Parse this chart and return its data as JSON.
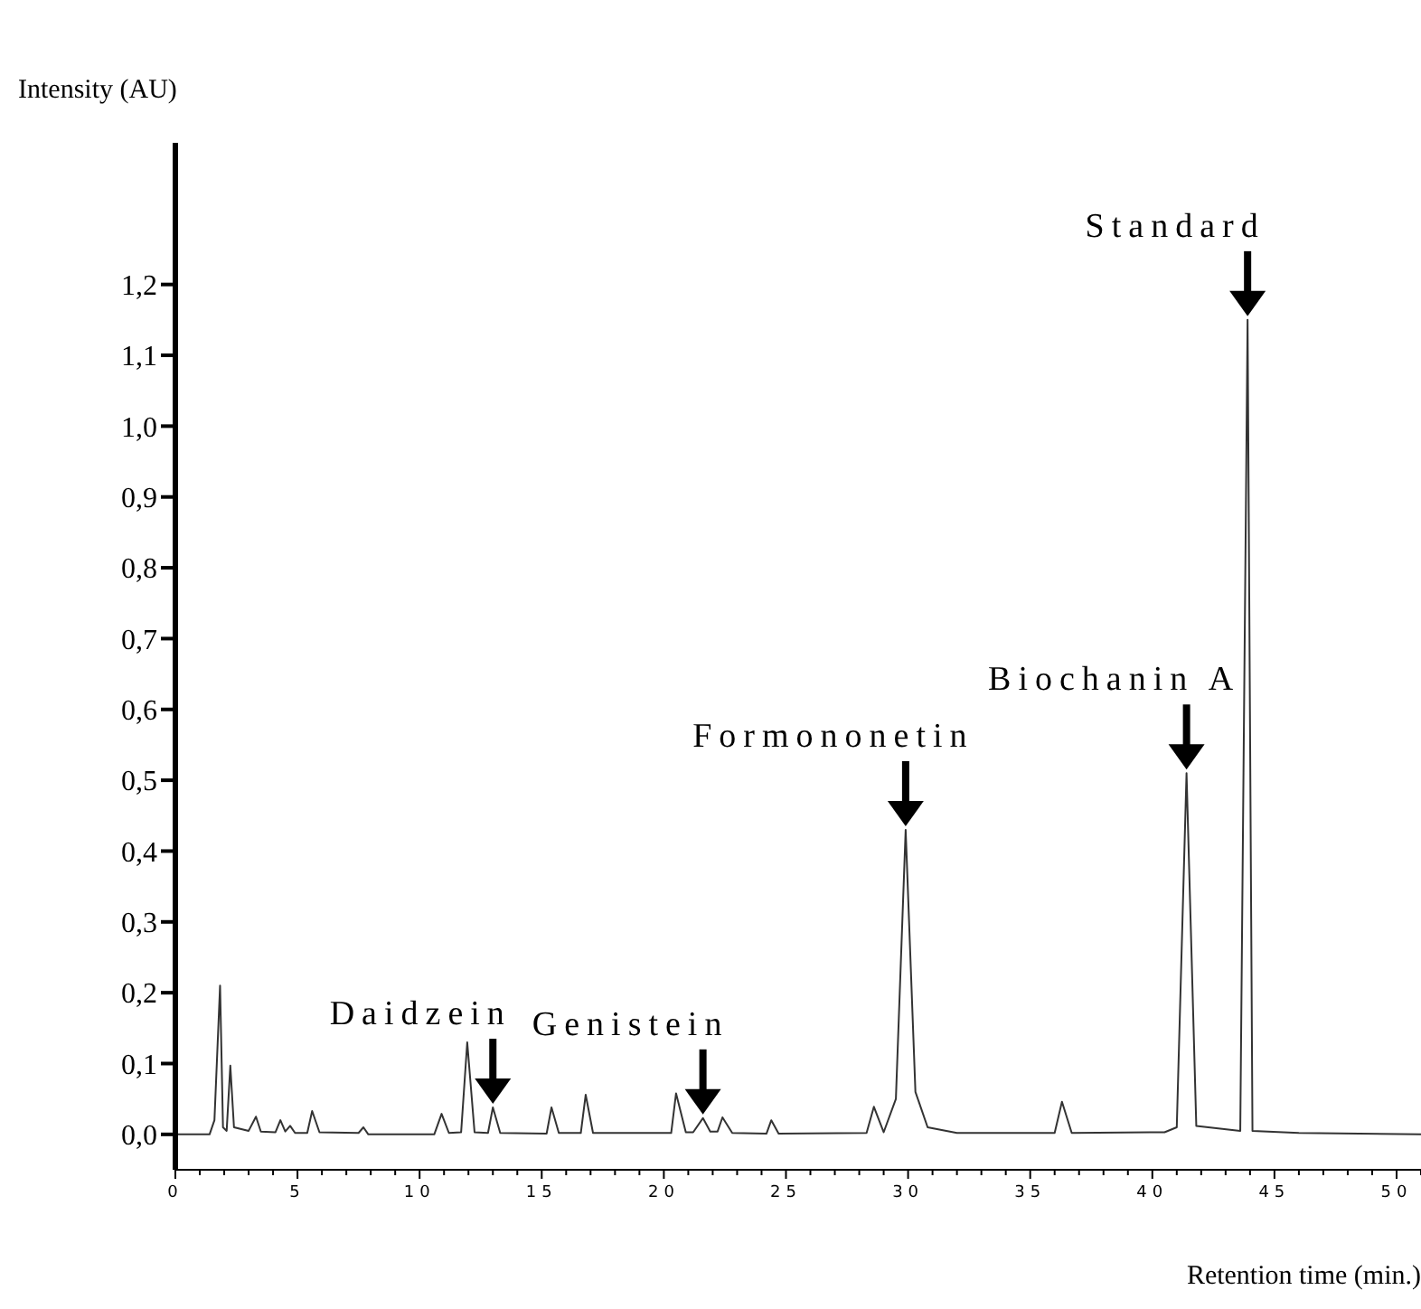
{
  "chart_data": {
    "type": "line",
    "xlabel": "Retention time (min.)",
    "ylabel": "Intensity (AU)",
    "x": [
      0,
      1.4,
      1.6,
      1.83,
      1.95,
      2.1,
      2.25,
      2.4,
      3.0,
      3.3,
      3.5,
      4.1,
      4.3,
      4.5,
      4.7,
      4.9,
      5.4,
      5.6,
      5.9,
      7.5,
      7.7,
      7.9,
      10.6,
      10.9,
      11.2,
      11.7,
      11.95,
      12.25,
      12.8,
      13.0,
      13.3,
      15.2,
      15.4,
      15.7,
      16.6,
      16.8,
      17.1,
      20.3,
      20.5,
      20.9,
      21.2,
      21.6,
      21.9,
      22.2,
      22.4,
      22.8,
      24.2,
      24.4,
      24.7,
      28.3,
      28.6,
      29.0,
      29.5,
      29.9,
      30.3,
      30.8,
      32,
      36.0,
      36.3,
      36.7,
      40.5,
      41.0,
      41.4,
      41.8,
      43.6,
      43.9,
      44.1,
      46,
      51
    ],
    "series": [
      {
        "color": "#333333",
        "values": [
          0,
          0,
          0.02,
          0.21,
          0.01,
          0.005,
          0.097,
          0.01,
          0.005,
          0.025,
          0.004,
          0.003,
          0.02,
          0.004,
          0.012,
          0.002,
          0.002,
          0.033,
          0.003,
          0.002,
          0.01,
          0,
          0,
          0.029,
          0.002,
          0.003,
          0.13,
          0.003,
          0.002,
          0.038,
          0.002,
          0.001,
          0.038,
          0.002,
          0.002,
          0.056,
          0.002,
          0.002,
          0.058,
          0.003,
          0.003,
          0.023,
          0.004,
          0.004,
          0.024,
          0.002,
          0.001,
          0.02,
          0.001,
          0.002,
          0.039,
          0.003,
          0.05,
          0.43,
          0.06,
          0.01,
          0.002,
          0.002,
          0.046,
          0.002,
          0.003,
          0.01,
          0.51,
          0.012,
          0.005,
          1.15,
          0.005,
          0.002,
          0
        ]
      }
    ],
    "annotations": [
      {
        "text": "Daidzein",
        "x": 13.0,
        "y": 0.038
      },
      {
        "text": "Genistein",
        "x": 21.6,
        "y": 0.023
      },
      {
        "text": "Formononetin",
        "x": 29.9,
        "y": 0.43
      },
      {
        "text": "Biochanin A",
        "x": 41.4,
        "y": 0.51
      },
      {
        "text": "Standard",
        "x": 43.9,
        "y": 1.15
      }
    ],
    "xlim": [
      0,
      51
    ],
    "xticks": [
      0,
      {
        "value": 1,
        "label": null
      },
      {
        "value": 2,
        "label": null
      },
      {
        "value": 3,
        "label": null
      },
      {
        "value": 4,
        "label": null
      },
      5,
      {
        "value": 6,
        "label": null
      },
      {
        "value": 7,
        "label": null
      },
      {
        "value": 8,
        "label": null
      },
      {
        "value": 9,
        "label": null
      },
      10,
      {
        "value": 11,
        "label": null
      },
      {
        "value": 12,
        "label": null
      },
      {
        "value": 13,
        "label": null
      },
      {
        "value": 14,
        "label": null
      },
      15,
      {
        "value": 16,
        "label": null
      },
      {
        "value": 17,
        "label": null
      },
      {
        "value": 18,
        "label": null
      },
      {
        "value": 19,
        "label": null
      },
      20,
      {
        "value": 21,
        "label": null
      },
      {
        "value": 22,
        "label": null
      },
      {
        "value": 23,
        "label": null
      },
      {
        "value": 24,
        "label": null
      },
      25,
      {
        "value": 26,
        "label": null
      },
      {
        "value": 27,
        "label": null
      },
      {
        "value": 28,
        "label": null
      },
      {
        "value": 29,
        "label": null
      },
      30,
      {
        "value": 31,
        "label": null
      },
      {
        "value": 32,
        "label": null
      },
      {
        "value": 33,
        "label": null
      },
      {
        "value": 34,
        "label": null
      },
      35,
      {
        "value": 36,
        "label": null
      },
      {
        "value": 37,
        "label": null
      },
      {
        "value": 38,
        "label": null
      },
      {
        "value": 39,
        "label": null
      },
      40,
      {
        "value": 41,
        "label": null
      },
      {
        "value": 42,
        "label": null
      },
      {
        "value": 43,
        "label": null
      },
      {
        "value": 44,
        "label": null
      },
      45,
      {
        "value": 46,
        "label": null
      },
      {
        "value": 47,
        "label": null
      },
      {
        "value": 48,
        "label": null
      },
      {
        "value": 49,
        "label": null
      },
      50,
      {
        "value": 51,
        "label": null
      }
    ],
    "ylim": [
      -0.05,
      1.4
    ],
    "yticks": [
      {
        "value": 0,
        "label": "0,0"
      },
      {
        "value": 0.1,
        "label": "0,1"
      },
      {
        "value": 0.2,
        "label": "0,2"
      },
      {
        "value": 0.3,
        "label": "0,3"
      },
      {
        "value": 0.4,
        "label": "0,4"
      },
      {
        "value": 0.5,
        "label": "0,5"
      },
      {
        "value": 0.6,
        "label": "0,6"
      },
      {
        "value": 0.7,
        "label": "0,7"
      },
      {
        "value": 0.8,
        "label": "0,8"
      },
      {
        "value": 0.9,
        "label": "0,9"
      },
      {
        "value": 1.0,
        "label": "1,0"
      },
      {
        "value": 1.1,
        "label": "1,1"
      },
      {
        "value": 1.2,
        "label": "1,2"
      }
    ],
    "grid": false,
    "marker": "none",
    "line_style": "solid"
  }
}
